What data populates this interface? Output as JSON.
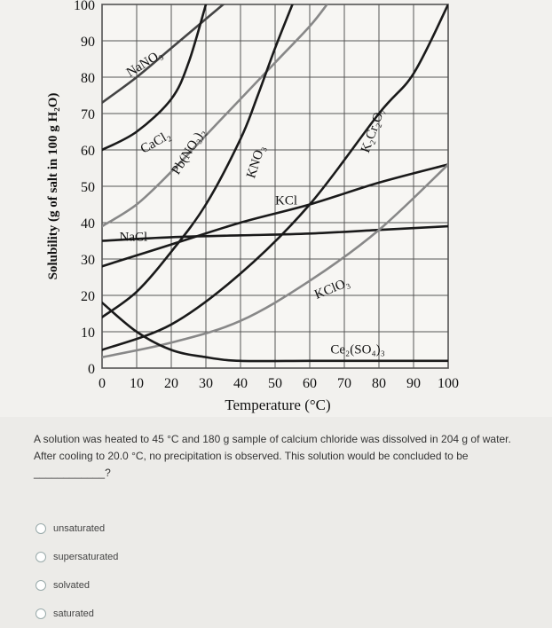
{
  "chart_data": {
    "type": "line",
    "xlabel": "Temperature (°C)",
    "ylabel": "Solubility (g of salt in 100 g H₂O)",
    "xlim": [
      0,
      100
    ],
    "ylim": [
      0,
      100
    ],
    "x_ticks": [
      0,
      10,
      20,
      30,
      40,
      50,
      60,
      70,
      80,
      90,
      100
    ],
    "y_ticks": [
      0,
      10,
      20,
      30,
      40,
      50,
      60,
      70,
      80,
      90,
      100
    ],
    "grid": true,
    "series": [
      {
        "name": "NaNO₃",
        "color": "#444444",
        "points": [
          [
            0,
            73
          ],
          [
            10,
            80
          ],
          [
            20,
            88
          ],
          [
            30,
            96
          ],
          [
            40,
            104
          ]
        ]
      },
      {
        "name": "CaCl₂",
        "color": "#1a1a1a",
        "points": [
          [
            0,
            60
          ],
          [
            10,
            65
          ],
          [
            20,
            74
          ],
          [
            25,
            84
          ],
          [
            30,
            100
          ]
        ]
      },
      {
        "name": "Pb(NO₃)₂",
        "color": "#888888",
        "points": [
          [
            0,
            39
          ],
          [
            10,
            45
          ],
          [
            20,
            54
          ],
          [
            30,
            64
          ],
          [
            40,
            74
          ],
          [
            50,
            84
          ],
          [
            60,
            94
          ],
          [
            65,
            100
          ]
        ]
      },
      {
        "name": "KNO₃",
        "color": "#1a1a1a",
        "points": [
          [
            0,
            14
          ],
          [
            10,
            21
          ],
          [
            20,
            32
          ],
          [
            30,
            45
          ],
          [
            40,
            63
          ],
          [
            45,
            75
          ],
          [
            50,
            88
          ],
          [
            55,
            100
          ]
        ]
      },
      {
        "name": "KCl",
        "color": "#1a1a1a",
        "points": [
          [
            0,
            28
          ],
          [
            20,
            34
          ],
          [
            40,
            40
          ],
          [
            60,
            45
          ],
          [
            80,
            51
          ],
          [
            100,
            56
          ]
        ]
      },
      {
        "name": "NaCl",
        "color": "#1a1a1a",
        "points": [
          [
            0,
            35
          ],
          [
            20,
            36
          ],
          [
            40,
            36.5
          ],
          [
            60,
            37
          ],
          [
            80,
            38
          ],
          [
            100,
            39
          ]
        ]
      },
      {
        "name": "K₂Cr₂O₇",
        "color": "#1a1a1a",
        "points": [
          [
            0,
            5
          ],
          [
            20,
            12
          ],
          [
            40,
            26
          ],
          [
            60,
            45
          ],
          [
            80,
            70
          ],
          [
            90,
            81
          ],
          [
            100,
            100
          ]
        ]
      },
      {
        "name": "KClO₃",
        "color": "#888888",
        "points": [
          [
            0,
            3
          ],
          [
            20,
            7
          ],
          [
            40,
            13
          ],
          [
            60,
            24
          ],
          [
            80,
            38
          ],
          [
            100,
            56
          ]
        ]
      },
      {
        "name": "Ce₂(SO₄)₃",
        "color": "#1a1a1a",
        "points": [
          [
            0,
            18
          ],
          [
            10,
            10
          ],
          [
            20,
            5
          ],
          [
            30,
            3
          ],
          [
            40,
            2
          ],
          [
            60,
            2
          ],
          [
            80,
            2
          ],
          [
            100,
            2
          ]
        ]
      }
    ],
    "labels": [
      {
        "text": "NaNO₃",
        "x": 8,
        "y": 80,
        "angle": -32
      },
      {
        "text": "CaCl₂",
        "x": 12,
        "y": 59,
        "angle": -30
      },
      {
        "text": "Pb(NO₃)₂",
        "x": 22,
        "y": 53,
        "angle": -58
      },
      {
        "text": "KNO₃",
        "x": 44,
        "y": 52,
        "angle": -72
      },
      {
        "text": "KCl",
        "x": 50,
        "y": 45,
        "angle": 0
      },
      {
        "text": "NaCl",
        "x": 5,
        "y": 35,
        "angle": 0
      },
      {
        "text": "K₂Cr₂O₇",
        "x": 77,
        "y": 59,
        "angle": -70
      },
      {
        "text": "KClO₃",
        "x": 62,
        "y": 19,
        "angle": -22
      },
      {
        "text": "Ce₂(SO₄)₃",
        "x": 66,
        "y": 4,
        "angle": 0
      }
    ]
  },
  "question": {
    "text": "A solution was heated to 45 °C and 180 g sample of calcium chloride was dissolved in 204 g of water. After cooling to 20.0 °C, no precipitation is observed.  This solution would be concluded to be ____________?",
    "options": [
      "unsaturated",
      "supersaturated",
      "solvated",
      "saturated"
    ]
  }
}
